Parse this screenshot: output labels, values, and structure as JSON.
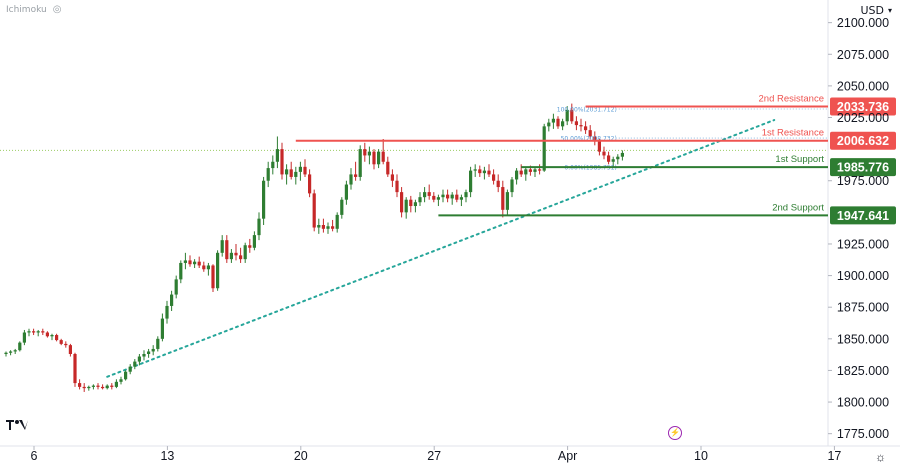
{
  "header": {
    "indicator": "Ichimoku",
    "currency": "USD",
    "settings_icon": "gear-icon",
    "visibility_icon": "eye-off-icon",
    "logo": "tradingview-logo",
    "event_icon": "lightning-icon"
  },
  "colors": {
    "resistance": "#ef5350",
    "support": "#2e7d32",
    "trendline": "#26a69a",
    "fib": "#5b9bd5",
    "up_candle": "#2e7d32",
    "down_candle": "#c62828",
    "price_dotted": "#9ccc65"
  },
  "chart_data": {
    "type": "candlestick",
    "y_axis": {
      "ticks": [
        "2100.000",
        "2075.000",
        "2050.000",
        "2025.000",
        "2000.000",
        "1975.000",
        "1950.000",
        "1925.000",
        "1900.000",
        "1875.000",
        "1850.000",
        "1825.000",
        "1800.000",
        "1775.000"
      ],
      "range": [
        1770,
        2110
      ]
    },
    "x_axis": {
      "ticks": [
        "6",
        "13",
        "20",
        "27",
        "Apr",
        "10",
        "17"
      ],
      "tick_index": [
        0,
        29,
        58,
        87,
        116,
        145,
        174
      ]
    },
    "levels": [
      {
        "label": "2nd Resistance",
        "value": 2033.736,
        "value_text": "2033.736",
        "kind": "resistance",
        "start_index": 126
      },
      {
        "label": "1st Resistance",
        "value": 2006.632,
        "value_text": "2006.632",
        "kind": "resistance",
        "start_index": 63
      },
      {
        "label": "1st Support",
        "value": 1985.776,
        "value_text": "1985.776",
        "kind": "support",
        "start_index": 112
      },
      {
        "label": "2nd Support",
        "value": 1947.641,
        "value_text": "1947.641",
        "kind": "support",
        "start_index": 94
      }
    ],
    "fib_levels": [
      {
        "label": "100.00%(2031.712)",
        "value": 2031.712
      },
      {
        "label": "50.00%(2008.732)",
        "value": 2008.732
      },
      {
        "label": "0.00%(1985.751)",
        "value": 1985.751
      }
    ],
    "trendline": {
      "from": {
        "index": 22,
        "value": 1820
      },
      "to": {
        "index": 167,
        "value": 2023
      }
    },
    "last_price_dotted": 1999,
    "candles": [
      [
        1838,
        1840,
        1836,
        1839
      ],
      [
        1839,
        1841,
        1837,
        1840
      ],
      [
        1840,
        1842,
        1838,
        1841
      ],
      [
        1841,
        1848,
        1840,
        1847
      ],
      [
        1847,
        1857,
        1845,
        1855
      ],
      [
        1855,
        1858,
        1852,
        1856
      ],
      [
        1856,
        1858,
        1853,
        1855
      ],
      [
        1855,
        1857,
        1852,
        1856
      ],
      [
        1856,
        1858,
        1853,
        1855
      ],
      [
        1855,
        1856,
        1851,
        1852
      ],
      [
        1852,
        1854,
        1849,
        1853
      ],
      [
        1853,
        1854,
        1848,
        1849
      ],
      [
        1849,
        1850,
        1845,
        1846
      ],
      [
        1846,
        1848,
        1843,
        1845
      ],
      [
        1845,
        1846,
        1836,
        1838
      ],
      [
        1838,
        1839,
        1812,
        1815
      ],
      [
        1815,
        1818,
        1810,
        1812
      ],
      [
        1812,
        1815,
        1808,
        1811
      ],
      [
        1811,
        1813,
        1809,
        1812
      ],
      [
        1812,
        1814,
        1810,
        1813
      ],
      [
        1813,
        1815,
        1810,
        1812
      ],
      [
        1812,
        1814,
        1810,
        1811
      ],
      [
        1811,
        1814,
        1810,
        1813
      ],
      [
        1813,
        1815,
        1810,
        1812
      ],
      [
        1812,
        1818,
        1811,
        1816
      ],
      [
        1816,
        1820,
        1814,
        1818
      ],
      [
        1818,
        1825,
        1817,
        1824
      ],
      [
        1824,
        1830,
        1822,
        1828
      ],
      [
        1828,
        1834,
        1826,
        1832
      ],
      [
        1832,
        1838,
        1829,
        1836
      ],
      [
        1836,
        1841,
        1833,
        1838
      ],
      [
        1838,
        1842,
        1835,
        1840
      ],
      [
        1840,
        1845,
        1837,
        1842
      ],
      [
        1842,
        1852,
        1840,
        1850
      ],
      [
        1850,
        1870,
        1848,
        1866
      ],
      [
        1866,
        1880,
        1862,
        1876
      ],
      [
        1876,
        1888,
        1872,
        1885
      ],
      [
        1885,
        1900,
        1882,
        1897
      ],
      [
        1897,
        1912,
        1894,
        1910
      ],
      [
        1910,
        1918,
        1905,
        1912
      ],
      [
        1912,
        1916,
        1907,
        1909
      ],
      [
        1909,
        1913,
        1906,
        1911
      ],
      [
        1911,
        1915,
        1906,
        1908
      ],
      [
        1908,
        1911,
        1903,
        1905
      ],
      [
        1905,
        1910,
        1900,
        1908
      ],
      [
        1908,
        1909,
        1887,
        1890
      ],
      [
        1890,
        1920,
        1888,
        1918
      ],
      [
        1918,
        1932,
        1915,
        1928
      ],
      [
        1928,
        1932,
        1910,
        1913
      ],
      [
        1913,
        1921,
        1910,
        1918
      ],
      [
        1918,
        1925,
        1912,
        1916
      ],
      [
        1916,
        1922,
        1910,
        1913
      ],
      [
        1913,
        1926,
        1910,
        1924
      ],
      [
        1924,
        1929,
        1918,
        1922
      ],
      [
        1922,
        1935,
        1920,
        1932
      ],
      [
        1932,
        1950,
        1928,
        1945
      ],
      [
        1945,
        1978,
        1940,
        1975
      ],
      [
        1975,
        1990,
        1970,
        1985
      ],
      [
        1985,
        1995,
        1980,
        1990
      ],
      [
        1990,
        2010,
        1985,
        2000
      ],
      [
        2000,
        2005,
        1976,
        1980
      ],
      [
        1980,
        1988,
        1972,
        1984
      ],
      [
        1984,
        1990,
        1976,
        1978
      ],
      [
        1978,
        1986,
        1972,
        1982
      ],
      [
        1982,
        1990,
        1975,
        1986
      ],
      [
        1986,
        1992,
        1978,
        1980
      ],
      [
        1980,
        1984,
        1962,
        1965
      ],
      [
        1965,
        1968,
        1935,
        1938
      ],
      [
        1938,
        1945,
        1933,
        1940
      ],
      [
        1940,
        1945,
        1934,
        1937
      ],
      [
        1937,
        1942,
        1933,
        1939
      ],
      [
        1939,
        1944,
        1935,
        1937
      ],
      [
        1937,
        1950,
        1934,
        1948
      ],
      [
        1948,
        1962,
        1945,
        1960
      ],
      [
        1960,
        1975,
        1956,
        1972
      ],
      [
        1972,
        1985,
        1968,
        1980
      ],
      [
        1980,
        1990,
        1975,
        1978
      ],
      [
        1978,
        2003,
        1975,
        2000
      ],
      [
        2000,
        2005,
        1990,
        1995
      ],
      [
        1995,
        2002,
        1988,
        1998
      ],
      [
        1998,
        2000,
        1984,
        1988
      ],
      [
        1988,
        2000,
        1985,
        1998
      ],
      [
        1998,
        2008,
        1988,
        1990
      ],
      [
        1990,
        1994,
        1978,
        1980
      ],
      [
        1980,
        1984,
        1970,
        1975
      ],
      [
        1975,
        1980,
        1962,
        1966
      ],
      [
        1966,
        1970,
        1946,
        1950
      ],
      [
        1950,
        1962,
        1945,
        1960
      ],
      [
        1960,
        1963,
        1950,
        1955
      ],
      [
        1955,
        1960,
        1950,
        1958
      ],
      [
        1958,
        1966,
        1955,
        1962
      ],
      [
        1962,
        1970,
        1958,
        1966
      ],
      [
        1966,
        1972,
        1960,
        1963
      ],
      [
        1963,
        1966,
        1958,
        1960
      ],
      [
        1960,
        1964,
        1955,
        1962
      ],
      [
        1962,
        1968,
        1958,
        1964
      ],
      [
        1964,
        1968,
        1958,
        1961
      ],
      [
        1961,
        1966,
        1956,
        1964
      ],
      [
        1964,
        1968,
        1958,
        1960
      ],
      [
        1960,
        1964,
        1955,
        1962
      ],
      [
        1962,
        1968,
        1958,
        1966
      ],
      [
        1966,
        1986,
        1962,
        1983
      ],
      [
        1983,
        1988,
        1978,
        1984
      ],
      [
        1984,
        1987,
        1978,
        1981
      ],
      [
        1981,
        1986,
        1976,
        1983
      ],
      [
        1983,
        1988,
        1978,
        1980
      ],
      [
        1980,
        1984,
        1972,
        1975
      ],
      [
        1975,
        1980,
        1966,
        1970
      ],
      [
        1970,
        1975,
        1946,
        1952
      ],
      [
        1952,
        1968,
        1948,
        1966
      ],
      [
        1966,
        1978,
        1962,
        1976
      ],
      [
        1976,
        1985,
        1972,
        1983
      ],
      [
        1983,
        1988,
        1978,
        1980
      ],
      [
        1980,
        1986,
        1975,
        1984
      ],
      [
        1984,
        1987,
        1979,
        1982
      ],
      [
        1982,
        1986,
        1978,
        1984
      ],
      [
        1984,
        1988,
        1980,
        1983
      ],
      [
        1983,
        2020,
        1982,
        2018
      ],
      [
        2018,
        2024,
        2014,
        2021
      ],
      [
        2021,
        2028,
        2016,
        2024
      ],
      [
        2024,
        2026,
        2016,
        2018
      ],
      [
        2018,
        2024,
        2015,
        2022
      ],
      [
        2022,
        2034,
        2019,
        2031
      ],
      [
        2031,
        2036,
        2020,
        2022
      ],
      [
        2022,
        2026,
        2015,
        2019
      ],
      [
        2019,
        2024,
        2014,
        2018
      ],
      [
        2018,
        2022,
        2012,
        2015
      ],
      [
        2015,
        2019,
        2008,
        2010
      ],
      [
        2010,
        2014,
        2003,
        2006
      ],
      [
        2006,
        2008,
        1995,
        1998
      ],
      [
        1998,
        2002,
        1992,
        1995
      ],
      [
        1995,
        1998,
        1988,
        1990
      ],
      [
        1990,
        1994,
        1986,
        1992
      ],
      [
        1992,
        1996,
        1988,
        1994
      ],
      [
        1994,
        1999,
        1991,
        1997
      ]
    ]
  }
}
